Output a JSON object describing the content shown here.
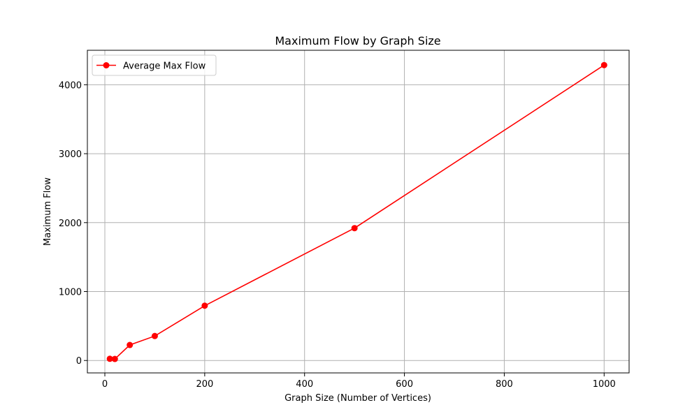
{
  "chart_data": {
    "type": "line",
    "title": "Maximum Flow by Graph Size",
    "xlabel": "Graph Size (Number of Vertices)",
    "ylabel": "Maximum Flow",
    "xlim": [
      -35,
      1050
    ],
    "ylim": [
      -180,
      4500
    ],
    "xticks": [
      0,
      200,
      400,
      600,
      800,
      1000
    ],
    "yticks": [
      0,
      1000,
      2000,
      3000,
      4000
    ],
    "grid": true,
    "legend_position": "top-left",
    "series": [
      {
        "name": "Average Max Flow",
        "color": "#ff0000",
        "marker": "circle",
        "x": [
          10,
          20,
          50,
          100,
          200,
          500,
          1000
        ],
        "y": [
          25,
          22,
          225,
          355,
          795,
          1920,
          4285
        ]
      }
    ]
  }
}
